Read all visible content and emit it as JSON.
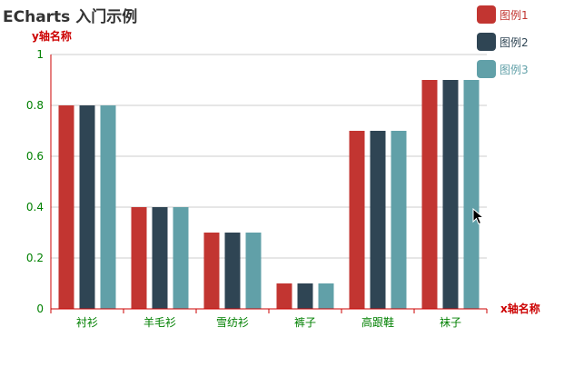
{
  "chart_data": {
    "type": "bar",
    "title": "ECharts 入门示例",
    "xlabel": "x轴名称",
    "ylabel": "y轴名称",
    "categories": [
      "衬衫",
      "羊毛衫",
      "雪纺衫",
      "裤子",
      "高跟鞋",
      "袜子"
    ],
    "series": [
      {
        "name": "图例1",
        "values": [
          0.8,
          0.4,
          0.3,
          0.1,
          0.7,
          0.9
        ],
        "color": "#c23531"
      },
      {
        "name": "图例2",
        "values": [
          0.8,
          0.4,
          0.3,
          0.1,
          0.7,
          0.9
        ],
        "color": "#2f4554"
      },
      {
        "name": "图例3",
        "values": [
          0.8,
          0.4,
          0.3,
          0.1,
          0.7,
          0.9
        ],
        "color": "#61a0a8"
      }
    ],
    "ylim": [
      0,
      1
    ],
    "yticks": [
      "0",
      "0.2",
      "0.4",
      "0.6",
      "0.8",
      "1"
    ],
    "grid": true,
    "legend_position": "top-right",
    "colors": {
      "axis_line": "#cc0000",
      "axis_name": "#cc0000",
      "tick_label": "#008000",
      "grid_line": "#cccccc"
    }
  }
}
